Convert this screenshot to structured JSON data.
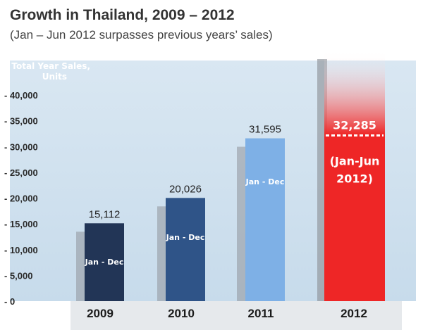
{
  "title": "Growth in Thailand, 2009 – 2012",
  "subtitle": "(Jan – Jun 2012 surpasses previous years’ sales)",
  "colors": {
    "plot_bg": "#cfe0ee",
    "bar_2009": "#223556",
    "bar_2010": "#2f5488",
    "bar_2011": "#7eb0e6",
    "bar_2012": "#ee2626",
    "shadow": "#8f949a"
  },
  "chart_data": {
    "type": "bar",
    "title": "Growth in Thailand, 2009 – 2012",
    "subtitle": "(Jan – Jun 2012 surpasses previous years’ sales)",
    "ylabel_lines": [
      "Total Year Sales,",
      "Units"
    ],
    "ylim": [
      0,
      40000
    ],
    "yticks": [
      0,
      5000,
      10000,
      15000,
      20000,
      25000,
      30000,
      35000,
      40000
    ],
    "ytick_labels": [
      "- 0",
      "- 5,000",
      "- 10,000",
      "- 15,000",
      "- 20,000",
      "- 25,000",
      "- 30,000",
      "- 35,000",
      "- 40,000"
    ],
    "categories": [
      "2009",
      "2010",
      "2011",
      "2012"
    ],
    "values": [
      15112,
      20026,
      31595,
      32285
    ],
    "value_labels": [
      "15,112",
      "20,026",
      "31,595",
      "32,285"
    ],
    "bar_notes": [
      "Jan - Dec",
      "Jan - Dec",
      "Jan - Dec",
      "(Jan-Jun 2012)"
    ],
    "highlight_note_lines": [
      "(Jan-Jun",
      "2012)"
    ],
    "grid": false,
    "legend": "none"
  }
}
